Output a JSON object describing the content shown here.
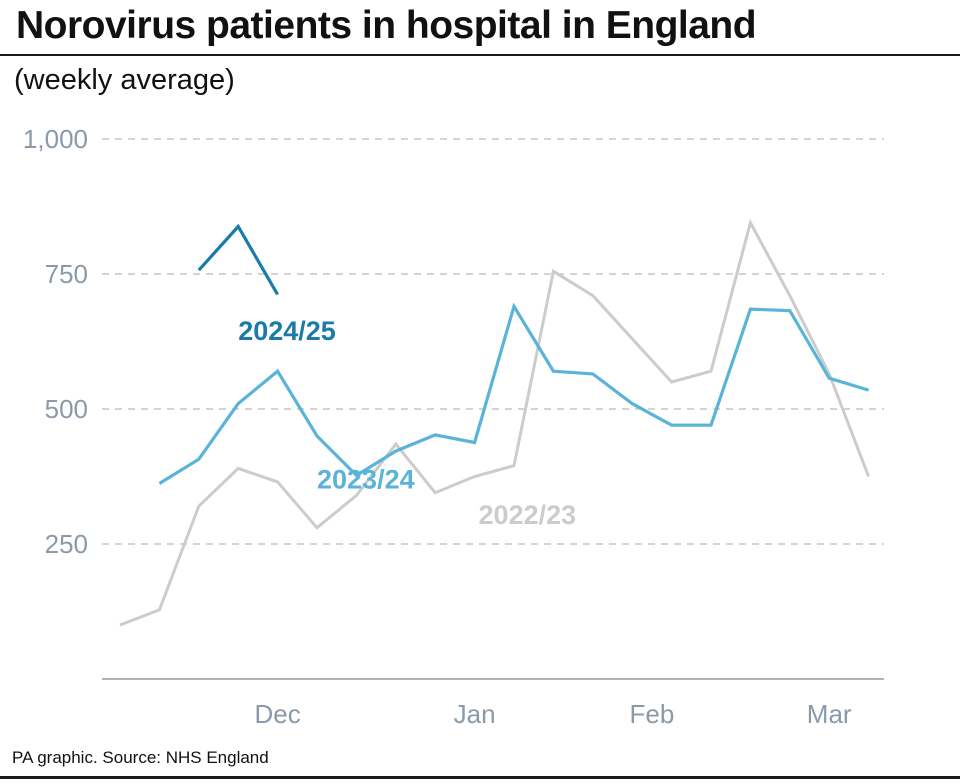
{
  "header": {
    "title": "Norovirus patients in hospital in England",
    "subtitle": "(weekly average)"
  },
  "footer": {
    "source": "PA graphic. Source: NHS England"
  },
  "colors": {
    "s2024": "#1a7ba8",
    "s2023": "#5ab4d9",
    "s2022": "#cccccc",
    "grid": "#bbbbbb",
    "axis": "#999999",
    "tick_text": "#8a9aa8"
  },
  "chart_data": {
    "type": "line",
    "x": [
      1,
      2,
      3,
      4,
      5,
      6,
      7,
      8,
      9,
      10,
      11,
      12,
      13,
      14,
      15,
      16,
      17,
      18,
      19,
      20,
      21
    ],
    "ylim": [
      0,
      1000
    ],
    "yticks": [
      250,
      500,
      750,
      1000
    ],
    "ytick_labels": [
      "250",
      "500",
      "750",
      "1,000"
    ],
    "xticks": [
      {
        "label": "Dec",
        "x": 5
      },
      {
        "label": "Jan",
        "x": 10
      },
      {
        "label": "Feb",
        "x": 14.5
      },
      {
        "label": "Mar",
        "x": 19
      }
    ],
    "grid": true,
    "series": [
      {
        "name": "2022/23",
        "key": "s2022",
        "values": [
          100,
          128,
          320,
          390,
          365,
          280,
          340,
          435,
          345,
          375,
          395,
          755,
          710,
          630,
          550,
          570,
          845,
          710,
          565,
          375,
          null
        ],
        "label_at": {
          "x": 10.1,
          "y": 287
        }
      },
      {
        "name": "2023/24",
        "key": "s2023",
        "values": [
          null,
          362,
          407,
          510,
          570,
          450,
          377,
          422,
          452,
          438,
          690,
          570,
          565,
          510,
          470,
          470,
          685,
          682,
          557,
          535,
          null
        ],
        "label_at": {
          "x": 6.0,
          "y": 353
        }
      },
      {
        "name": "2024/25",
        "key": "s2024",
        "values": [
          null,
          null,
          757,
          838,
          712,
          null,
          null,
          null,
          null,
          null,
          null,
          null,
          null,
          null,
          null,
          null,
          null,
          null,
          null,
          null,
          null
        ],
        "label_at": {
          "x": 4.0,
          "y": 628
        }
      }
    ]
  }
}
